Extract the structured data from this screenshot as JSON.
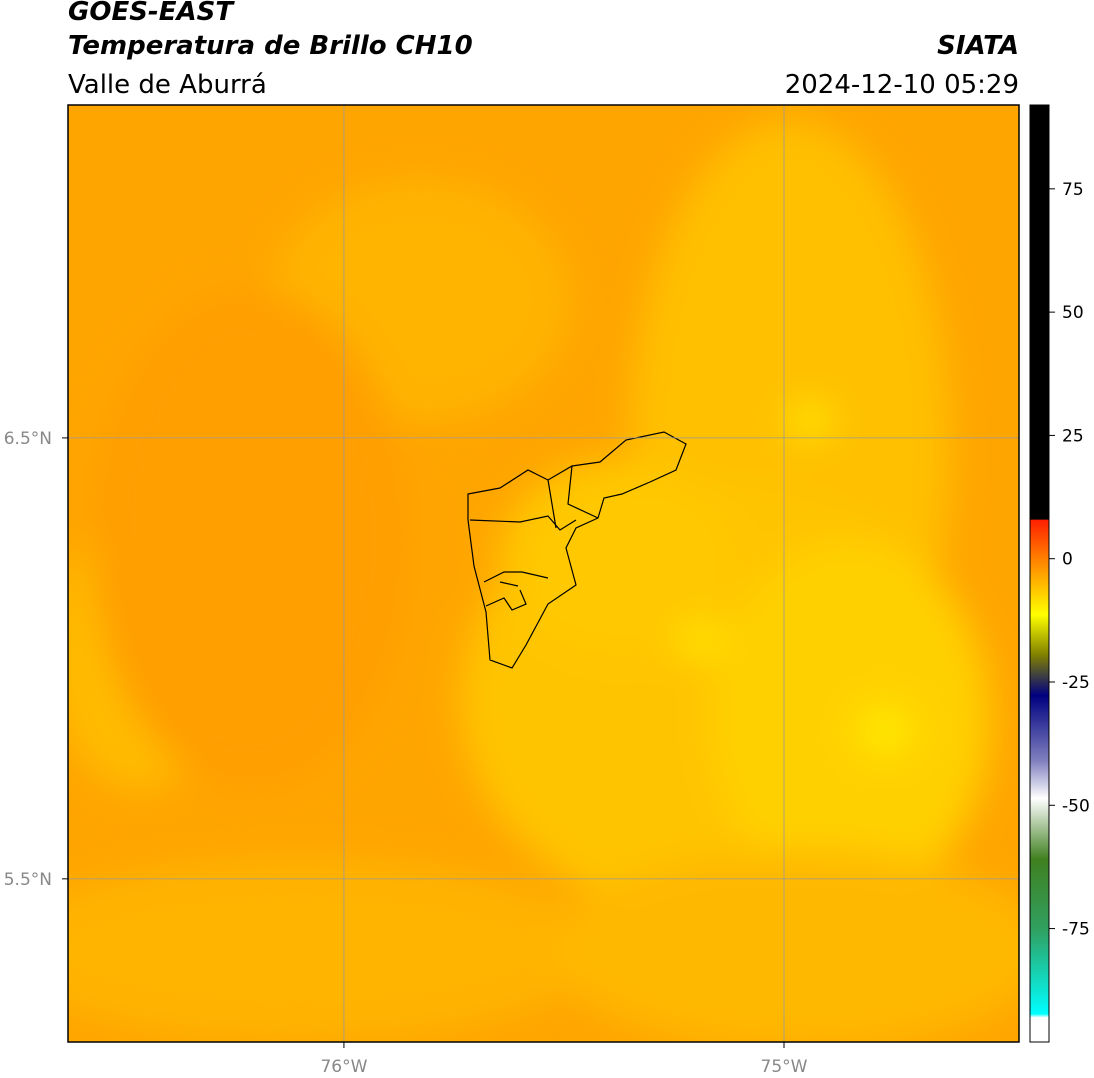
{
  "header": {
    "title": "GOES-EAST",
    "subtitle": "Temperatura de Brillo CH10",
    "region": "Valle de Aburrá",
    "source": "SIATA",
    "timestamp": "2024-12-10 05:29"
  },
  "map": {
    "xlim": [
      -76.627,
      -74.466
    ],
    "ylim": [
      5.13,
      7.255
    ],
    "xticks": [
      {
        "value": -76,
        "label": "76°W"
      },
      {
        "value": -75,
        "label": "75°W"
      }
    ],
    "yticks": [
      {
        "value": 5.5,
        "label": "5.5°N"
      },
      {
        "value": 6.5,
        "label": "6.5°N"
      }
    ],
    "grid": true
  },
  "colorbar": {
    "lim": [
      -98,
      92
    ],
    "ticks": [
      -75,
      -50,
      -25,
      0,
      25,
      50,
      75
    ]
  }
}
